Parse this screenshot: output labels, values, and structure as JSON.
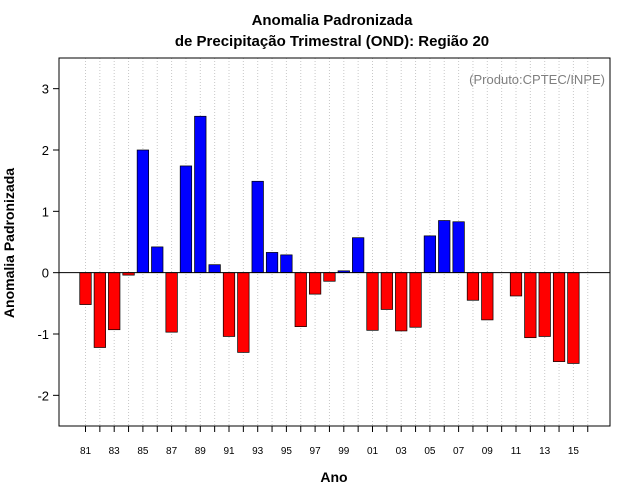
{
  "chart_data": {
    "type": "bar",
    "title": "Anomalia Padronizada",
    "subtitle": "de Precipitação Trimestral (OND): Região 20",
    "xlabel": "Ano",
    "ylabel": "Anomalia Padronizada",
    "credit": "(Produto:CPTEC/INPE)",
    "ylim": [
      -2.5,
      3.5
    ],
    "yticks": [
      -2,
      -1,
      0,
      1,
      2,
      3
    ],
    "grid": "vertical dotted",
    "positive_color": "#0000ff",
    "negative_color": "#ff0000",
    "categories": [
      "81",
      "82",
      "83",
      "84",
      "85",
      "86",
      "87",
      "88",
      "89",
      "90",
      "91",
      "92",
      "93",
      "94",
      "95",
      "96",
      "97",
      "98",
      "99",
      "00",
      "01",
      "02",
      "03",
      "04",
      "05",
      "06",
      "07",
      "08",
      "09",
      "10",
      "11",
      "12",
      "13",
      "14",
      "15",
      "16"
    ],
    "tick_labels": [
      "81",
      "83",
      "85",
      "87",
      "89",
      "91",
      "93",
      "95",
      "97",
      "99",
      "01",
      "03",
      "05",
      "07",
      "09",
      "11",
      "13",
      "15"
    ],
    "values": [
      -0.52,
      -1.22,
      -0.93,
      -0.04,
      2.0,
      0.42,
      -0.97,
      1.74,
      2.55,
      0.13,
      -1.04,
      -1.3,
      1.49,
      0.33,
      0.29,
      -0.88,
      -0.35,
      -0.14,
      0.03,
      0.57,
      -0.94,
      -0.6,
      -0.95,
      -0.89,
      0.6,
      0.85,
      0.83,
      -0.45,
      -0.77,
      0.0,
      -0.38,
      -1.06,
      -1.04,
      -1.45,
      -1.48,
      0.0
    ]
  }
}
